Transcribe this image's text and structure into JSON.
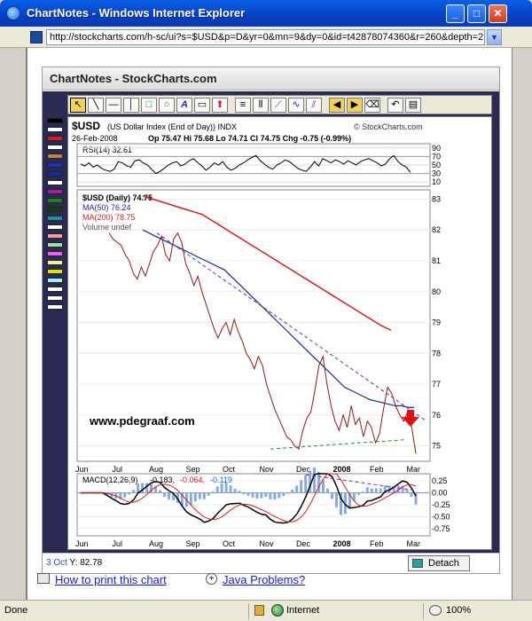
{
  "window": {
    "title": "ChartNotes - Windows Internet Explorer",
    "minimize": "_",
    "maximize": "□",
    "close": "✕"
  },
  "address": {
    "url": "http://stockcharts.com/h-sc/ui?s=$USD&p=D&yr=0&mn=9&dy=0&id=t42878074360&r=260&depth=2",
    "dropdown": "▼"
  },
  "app": {
    "title": "ChartNotes - StockCharts.com",
    "detach_label": "Detach",
    "coord_date": "3 Oct",
    "coord_value": "Y: 82.78"
  },
  "links": {
    "print": "How to print this chart",
    "java": "Java Problems?"
  },
  "status": {
    "text": "Done",
    "zone": "Internet",
    "zoom": "100%"
  },
  "colors": {
    "price": "#8a1a1a",
    "ma50": "#1a2a8a",
    "ma200": "#cc2222",
    "trendline": "#7a2a9a",
    "support": "#2a8a2a",
    "arrow": "#e01010"
  },
  "palette_colors": [
    "#000000",
    "#ffffff",
    "#d02020",
    "#ffffff",
    "#c0804a",
    "#2030c0",
    "#1030a0",
    "#ffffff",
    "#a020a0",
    "#208020",
    "#104010",
    "#2090a0",
    "#ffffff",
    "#f0a0a0",
    "#a0e0a0",
    "#f060f0",
    "#f0f0a0",
    "#e0e000",
    "#a0f0f0",
    "#ffffff",
    "#ffffff",
    "#ffffff"
  ],
  "chart_data": {
    "type": "line",
    "header": {
      "symbol": "$USD",
      "name": "(US Dollar Index (End of Day)) INDX",
      "source": "© StockCharts.com",
      "date": "26-Feb-2008",
      "ohlc": "Op 75.47  Hi 75.68  Lo 74.71  Cl 74.75  Chg -0.75 (-0.99%)"
    },
    "watermark": "www.pdegraaf.com",
    "months": [
      "Jun",
      "Jul",
      "Aug",
      "Sep",
      "Oct",
      "Nov",
      "Dec",
      "2008",
      "Feb",
      "Mar"
    ],
    "rsi": {
      "label": "RSI(14) 32.61",
      "ticks": [
        90,
        70,
        50,
        30,
        10
      ],
      "values": [
        52,
        48,
        55,
        45,
        50,
        42,
        38,
        35,
        40,
        58,
        55,
        48,
        45,
        60,
        62,
        55,
        50,
        40,
        30,
        35,
        42,
        50,
        55,
        58,
        48,
        52,
        60,
        65,
        56,
        48,
        38,
        45,
        55,
        50,
        58,
        45,
        38,
        42,
        50,
        55,
        62,
        68,
        72,
        60,
        52,
        45,
        40,
        50,
        55,
        62,
        58,
        50,
        42,
        38,
        35,
        45,
        58,
        48,
        65,
        60,
        55,
        62,
        58,
        52,
        60,
        55,
        50,
        58,
        62,
        65,
        60,
        55,
        48,
        52,
        65,
        72,
        58,
        50,
        45,
        32.6
      ]
    },
    "price": {
      "legend": {
        "price": "$USD (Daily) 74.75",
        "ma50": "MA(50) 76.24",
        "ma200": "MA(200) 78.75",
        "volume": "Volume undef"
      },
      "ticks": [
        83,
        82,
        81,
        80,
        79,
        78,
        77,
        76,
        75
      ],
      "ylim": [
        74.5,
        83.3
      ],
      "close": [
        81.9,
        81.7,
        81.6,
        81.5,
        81.2,
        81.0,
        80.6,
        80.4,
        80.8,
        80.5,
        80.9,
        81.3,
        81.5,
        81.8,
        81.2,
        81.0,
        81.7,
        81.9,
        81.6,
        80.9,
        80.6,
        80.2,
        80.5,
        80.0,
        79.6,
        79.2,
        78.8,
        78.5,
        78.8,
        79.0,
        78.6,
        79.1,
        78.7,
        78.4,
        78.0,
        77.8,
        77.5,
        77.9,
        77.6,
        77.0,
        76.6,
        76.2,
        75.9,
        75.6,
        75.3,
        75.2,
        75.0,
        74.9,
        75.5,
        75.9,
        76.1,
        76.8,
        77.6,
        77.9,
        77.0,
        76.3,
        75.8,
        75.5,
        76.0,
        75.6,
        76.3,
        75.7,
        75.9,
        75.3,
        75.8,
        75.6,
        75.1,
        75.4,
        76.2,
        76.9,
        76.7,
        76.3,
        76.0,
        75.8,
        76.1,
        75.6,
        74.75
      ],
      "ma50": [
        82.0,
        81.9,
        81.8,
        81.7,
        81.6,
        81.5,
        81.4,
        81.3,
        81.2,
        81.1,
        81.0,
        80.9,
        80.8,
        80.7,
        80.5,
        80.3,
        80.1,
        79.9,
        79.7,
        79.5,
        79.3,
        79.1,
        78.9,
        78.7,
        78.5,
        78.3,
        78.1,
        77.9,
        77.7,
        77.5,
        77.3,
        77.1,
        76.9,
        76.8,
        76.7,
        76.6,
        76.5,
        76.45,
        76.4,
        76.35,
        76.3,
        76.3,
        76.25,
        76.24
      ],
      "ma200": [
        83.1,
        83.0,
        82.9,
        82.8,
        82.7,
        82.6,
        82.5,
        82.3,
        82.1,
        81.9,
        81.7,
        81.5,
        81.3,
        81.1,
        80.9,
        80.7,
        80.5,
        80.3,
        80.1,
        79.9,
        79.7,
        79.5,
        79.3,
        79.1,
        78.9,
        78.75
      ],
      "annotation_arrow": "down"
    },
    "macd": {
      "label_prefix": "MACD(12,26,9)",
      "macd_value": "-0.183",
      "signal_value": "-0.064",
      "hist_value": "-0.119",
      "ticks": [
        0.25,
        0.0,
        -0.25,
        -0.5,
        -0.75
      ],
      "ylim": [
        -0.9,
        0.4
      ]
    }
  }
}
